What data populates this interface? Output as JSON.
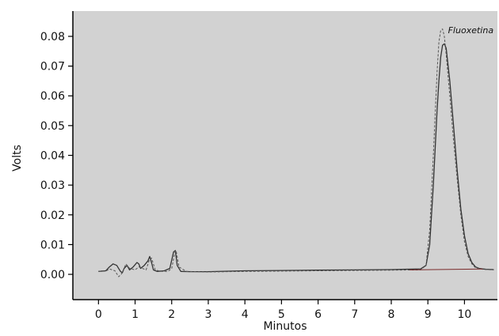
{
  "chart_data": {
    "type": "line",
    "title": "",
    "xlabel": "Minutos",
    "ylabel": "Volts",
    "xlim": [
      -0.7,
      10.9
    ],
    "ylim": [
      -0.0085,
      0.0885
    ],
    "x_ticks": [
      0,
      1,
      2,
      3,
      4,
      5,
      6,
      7,
      8,
      9,
      10
    ],
    "y_ticks": [
      0.0,
      0.01,
      0.02,
      0.03,
      0.04,
      0.05,
      0.06,
      0.07,
      0.08
    ],
    "y_tick_labels": [
      "0.00",
      "0.01",
      "0.02",
      "0.03",
      "0.04",
      "0.05",
      "0.06",
      "0.07",
      "0.08"
    ],
    "grid": false,
    "background": "#d2d2d2",
    "annotations": [
      {
        "text": "Fluoxetina",
        "x": 9.55,
        "y": 0.081
      }
    ],
    "series": [
      {
        "style": "solid",
        "color": "#333333",
        "x": [
          0,
          0.2,
          0.3,
          0.4,
          0.5,
          0.6,
          0.65,
          0.7,
          0.78,
          0.85,
          0.95,
          1.05,
          1.1,
          1.15,
          1.25,
          1.35,
          1.4,
          1.45,
          1.5,
          1.6,
          1.8,
          1.95,
          2.05,
          2.1,
          2.15,
          2.25,
          2.5,
          3.0,
          4.0,
          5.0,
          6.0,
          7.0,
          8.0,
          8.8,
          8.95,
          9.05,
          9.15,
          9.25,
          9.3,
          9.35,
          9.4,
          9.45,
          9.5,
          9.6,
          9.7,
          9.8,
          9.9,
          10.0,
          10.1,
          10.2,
          10.3,
          10.4,
          10.5,
          10.6,
          10.8
        ],
        "y": [
          0.001,
          0.0012,
          0.0025,
          0.0035,
          0.003,
          0.001,
          0.0005,
          0.002,
          0.003,
          0.0015,
          0.0025,
          0.004,
          0.0035,
          0.002,
          0.003,
          0.0045,
          0.006,
          0.004,
          0.0015,
          0.001,
          0.0012,
          0.002,
          0.0075,
          0.008,
          0.003,
          0.001,
          0.0009,
          0.0009,
          0.0012,
          0.0013,
          0.0014,
          0.0015,
          0.0016,
          0.0018,
          0.003,
          0.01,
          0.03,
          0.055,
          0.065,
          0.073,
          0.077,
          0.0775,
          0.076,
          0.065,
          0.05,
          0.035,
          0.022,
          0.013,
          0.007,
          0.004,
          0.0025,
          0.002,
          0.0018,
          0.0017,
          0.0016
        ]
      },
      {
        "style": "dashed",
        "color": "#555555",
        "x": [
          0,
          0.2,
          0.3,
          0.45,
          0.55,
          0.62,
          0.68,
          0.75,
          0.85,
          1.0,
          1.1,
          1.2,
          1.3,
          1.38,
          1.45,
          1.55,
          1.7,
          1.9,
          2.0,
          2.08,
          2.12,
          2.2,
          2.4,
          3.0,
          4.0,
          5.0,
          6.0,
          7.0,
          8.0,
          8.8,
          8.95,
          9.05,
          9.15,
          9.25,
          9.3,
          9.35,
          9.4,
          9.45,
          9.5,
          9.6,
          9.7,
          9.8,
          9.9,
          10.0,
          10.1,
          10.2,
          10.3,
          10.5,
          10.8
        ],
        "y": [
          0.001,
          0.0011,
          0.0018,
          0.0012,
          -0.0008,
          0.0,
          0.0015,
          0.0035,
          0.002,
          0.0015,
          0.0025,
          0.002,
          0.0015,
          0.0045,
          0.0055,
          0.0015,
          0.001,
          0.001,
          0.002,
          0.007,
          0.008,
          0.0025,
          0.001,
          0.0008,
          0.001,
          0.0011,
          0.0012,
          0.0013,
          0.0014,
          0.0015,
          0.003,
          0.015,
          0.04,
          0.068,
          0.078,
          0.082,
          0.0825,
          0.08,
          0.074,
          0.06,
          0.045,
          0.032,
          0.02,
          0.011,
          0.006,
          0.0035,
          0.0022,
          0.0017,
          0.0015
        ]
      }
    ]
  }
}
